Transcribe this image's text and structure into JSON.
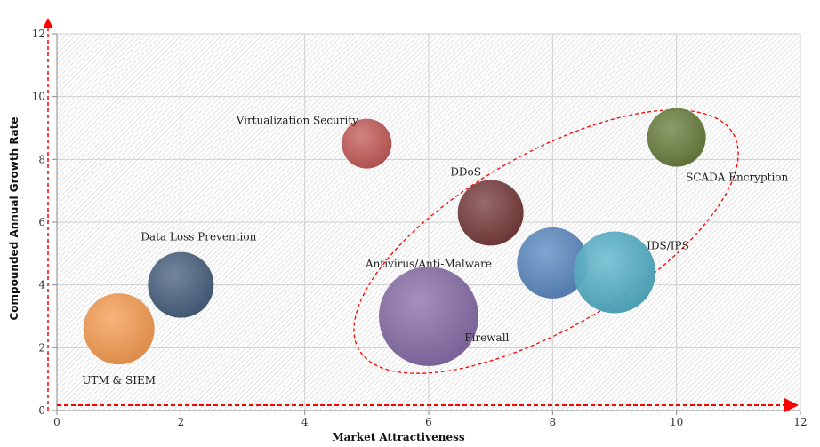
{
  "chart_data": {
    "type": "scatter",
    "subtype": "bubble",
    "title": "",
    "xlabel": "Market Attractiveness",
    "ylabel": "Compounded Annual Growth Rate",
    "xlim": [
      0,
      12
    ],
    "ylim": [
      0,
      12
    ],
    "xticks": [
      0,
      2,
      4,
      6,
      8,
      10,
      12
    ],
    "yticks": [
      0,
      2,
      4,
      6,
      8,
      10,
      12
    ],
    "grid": true,
    "points": [
      {
        "name": "UTM & SIEM",
        "x": 1,
        "y": 2.6,
        "size": 40,
        "color": "#f79646"
      },
      {
        "name": "Data Loss Prevention",
        "x": 2,
        "y": 4.0,
        "size": 37,
        "color": "#3b5575"
      },
      {
        "name": "Virtualization Security",
        "x": 5,
        "y": 8.5,
        "size": 28,
        "color": "#c0504d"
      },
      {
        "name": "DDoS",
        "x": 7,
        "y": 6.3,
        "size": 37,
        "color": "#6e2e2e"
      },
      {
        "name": "Antivirus/Anti-Malware",
        "x": 6,
        "y": 3.0,
        "size": 56,
        "color": "#8064a2"
      },
      {
        "name": "Firewall",
        "x": 8,
        "y": 4.7,
        "size": 40,
        "color": "#4f81bd"
      },
      {
        "name": "IDS/IPS",
        "x": 9,
        "y": 4.4,
        "size": 46,
        "color": "#4bacc6"
      },
      {
        "name": "SCADA Encryption",
        "x": 10,
        "y": 8.7,
        "size": 33,
        "color": "#5f7530"
      }
    ],
    "highlight_color": "#ff0000"
  }
}
